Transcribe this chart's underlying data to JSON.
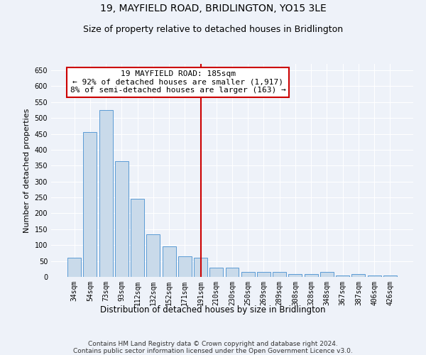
{
  "title": "19, MAYFIELD ROAD, BRIDLINGTON, YO15 3LE",
  "subtitle": "Size of property relative to detached houses in Bridlington",
  "xlabel": "Distribution of detached houses by size in Bridlington",
  "ylabel": "Number of detached properties",
  "categories": [
    "34sqm",
    "54sqm",
    "73sqm",
    "93sqm",
    "112sqm",
    "132sqm",
    "152sqm",
    "171sqm",
    "191sqm",
    "210sqm",
    "230sqm",
    "250sqm",
    "269sqm",
    "289sqm",
    "308sqm",
    "328sqm",
    "348sqm",
    "367sqm",
    "387sqm",
    "406sqm",
    "426sqm"
  ],
  "values": [
    60,
    455,
    525,
    365,
    245,
    135,
    95,
    65,
    60,
    30,
    30,
    15,
    15,
    15,
    10,
    8,
    15,
    5,
    8,
    5,
    5
  ],
  "bar_color": "#c9daea",
  "bar_edge_color": "#5b9bd5",
  "vline_x_index": 8,
  "vline_color": "#cc0000",
  "ylim": [
    0,
    670
  ],
  "yticks": [
    0,
    50,
    100,
    150,
    200,
    250,
    300,
    350,
    400,
    450,
    500,
    550,
    600,
    650
  ],
  "annotation_text": "19 MAYFIELD ROAD: 185sqm\n← 92% of detached houses are smaller (1,917)\n8% of semi-detached houses are larger (163) →",
  "annotation_box_color": "#ffffff",
  "annotation_box_edge": "#cc0000",
  "footer_line1": "Contains HM Land Registry data © Crown copyright and database right 2024.",
  "footer_line2": "Contains public sector information licensed under the Open Government Licence v3.0.",
  "background_color": "#eef2f9",
  "grid_color": "#ffffff",
  "title_fontsize": 10,
  "subtitle_fontsize": 9,
  "xlabel_fontsize": 8.5,
  "ylabel_fontsize": 8,
  "tick_fontsize": 7,
  "footer_fontsize": 6.5,
  "annotation_fontsize": 8
}
